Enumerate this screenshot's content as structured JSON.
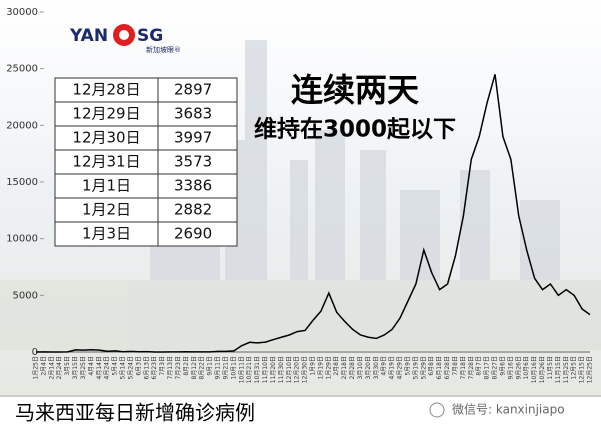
{
  "chart_data": {
    "type": "line",
    "color": "#000000",
    "categories": [
      "1月25日",
      "2月4日",
      "2月14日",
      "2月24日",
      "3月5日",
      "3月15日",
      "3月25日",
      "4月4日",
      "4月14日",
      "4月24日",
      "5月4日",
      "5月14日",
      "5月24日",
      "6月3日",
      "6月13日",
      "6月23日",
      "7月3日",
      "7月13日",
      "7月23日",
      "8月2日",
      "8月12日",
      "8月22日",
      "9月1日",
      "9月11日",
      "9月21日",
      "10月1日",
      "10月11日",
      "10月21日",
      "10月31日",
      "11月10日",
      "11月20日",
      "11月30日",
      "12月10日",
      "12月20日",
      "12月30日",
      "1月9日",
      "1月19日",
      "1月29日",
      "2月8日",
      "2月18日",
      "2月28日",
      "3月10日",
      "3月20日",
      "3月30日",
      "4月9日",
      "4月19日",
      "4月29日",
      "5月9日",
      "5月19日",
      "5月29日",
      "6月8日",
      "6月18日",
      "6月28日",
      "7月8日",
      "7月18日",
      "7月28日",
      "8月7日",
      "8月17日",
      "8月27日",
      "9月6日",
      "9月16日",
      "9月26日",
      "10月6日",
      "10月16日",
      "10月26日",
      "11月5日",
      "11月15日",
      "11月25日",
      "12月5日",
      "12月15日",
      "12月25日"
    ],
    "values": [
      0,
      10,
      0,
      0,
      10,
      190,
      170,
      200,
      170,
      70,
      100,
      20,
      50,
      20,
      30,
      5,
      5,
      10,
      10,
      20,
      10,
      10,
      10,
      60,
      50,
      100,
      560,
      860,
      800,
      870,
      1100,
      1300,
      1500,
      1800,
      1900,
      2800,
      3600,
      5200,
      3500,
      2700,
      2000,
      1500,
      1300,
      1200,
      1500,
      2000,
      3000,
      4500,
      6000,
      9000,
      7000,
      5500,
      6000,
      8500,
      12000,
      17000,
      19000,
      22000,
      24500,
      19000,
      17000,
      12000,
      9000,
      6500,
      5500,
      6000,
      5000,
      5500,
      5000,
      3800,
      3300
    ],
    "ylim": [
      0,
      30000
    ],
    "yticks": [
      0,
      5000,
      10000,
      15000,
      20000,
      25000,
      30000
    ],
    "title": "连续两天",
    "subtitle": "维持在3000起以下",
    "caption": "马来西亚每日新增确诊病例"
  },
  "table": {
    "rows": [
      [
        "12月28日",
        2897
      ],
      [
        "12月29日",
        3683
      ],
      [
        "12月30日",
        3997
      ],
      [
        "12月31日",
        3573
      ],
      [
        "1月1日",
        3386
      ],
      [
        "1月2日",
        2882
      ],
      [
        "1月3日",
        2690
      ]
    ]
  },
  "logo": {
    "left": "YAN",
    "right": "SG",
    "sub": "新加坡眼®"
  },
  "watermark": "微信号: kanxinjiapo"
}
